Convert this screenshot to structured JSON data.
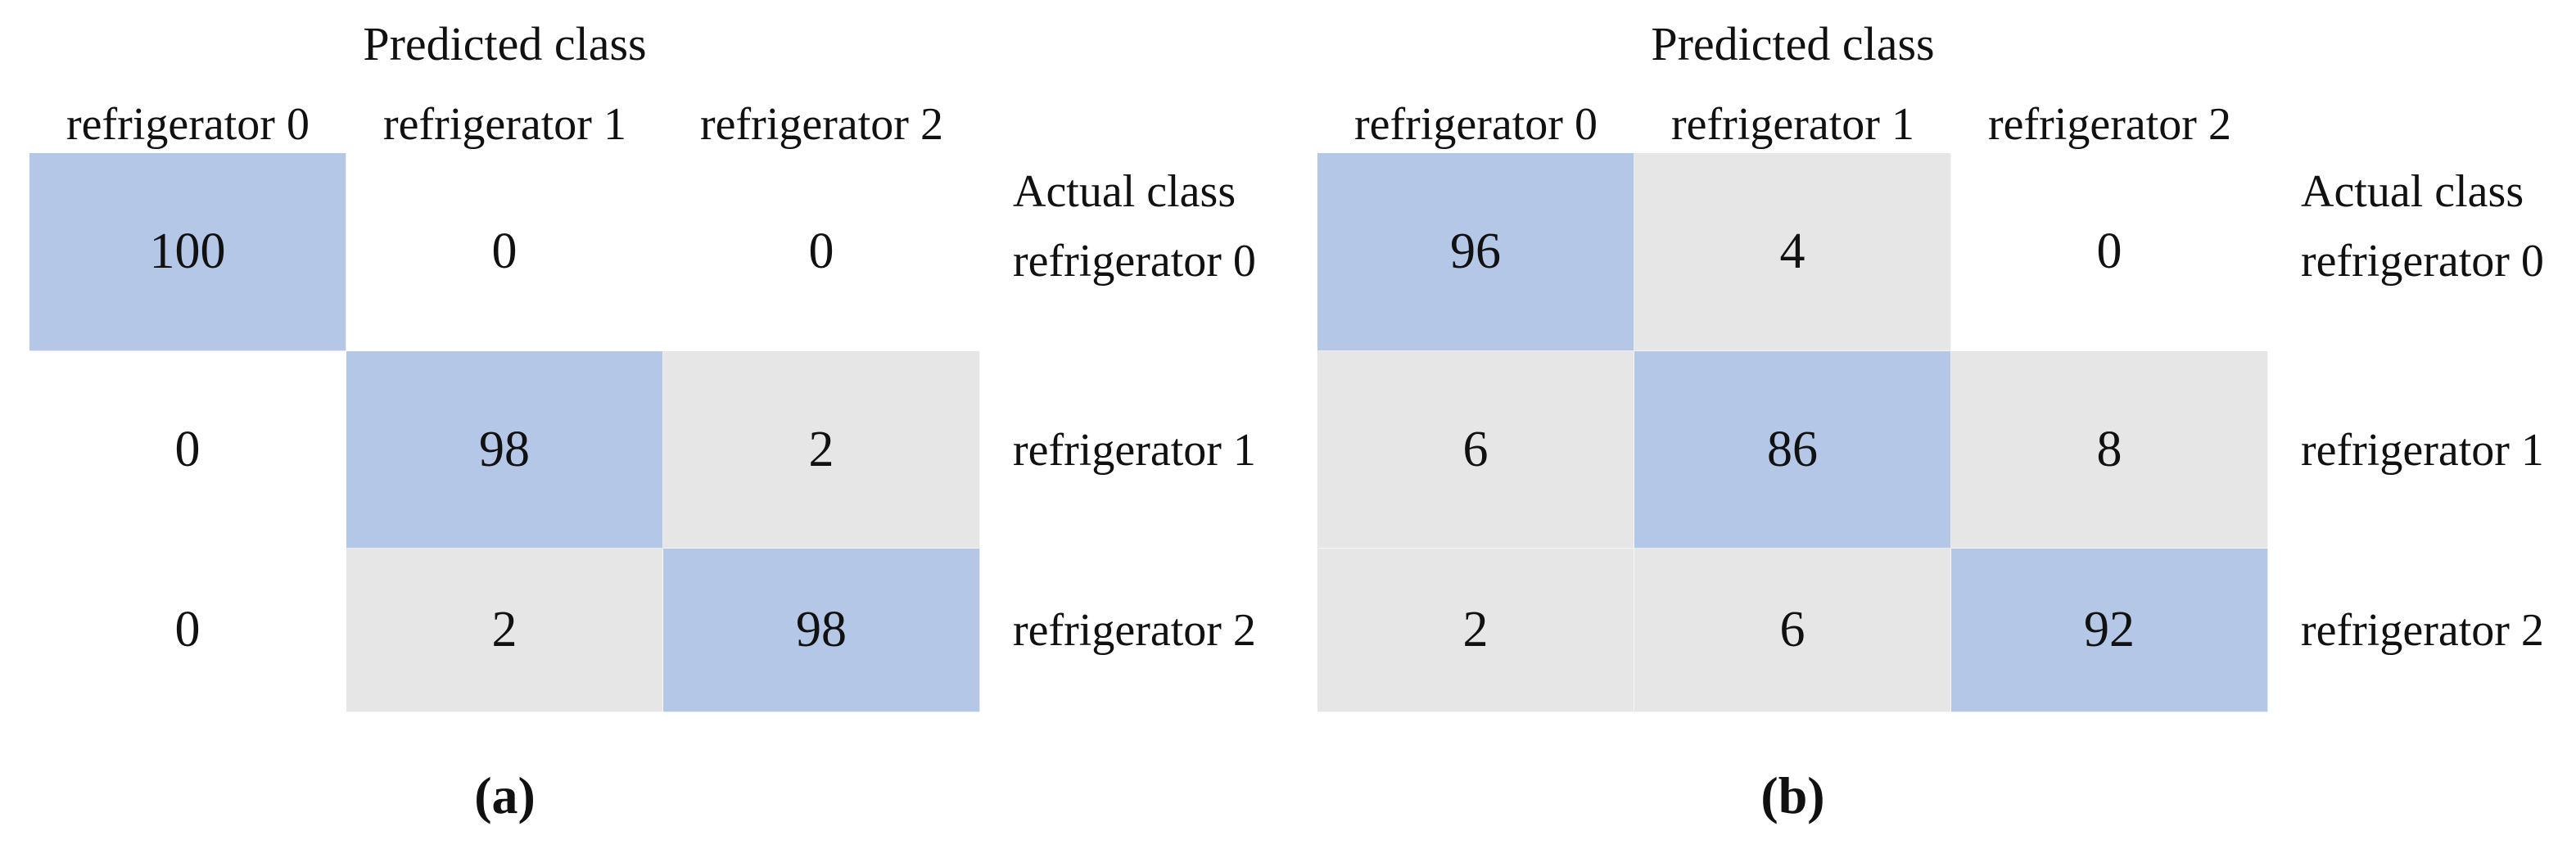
{
  "colors": {
    "fill_diagonal": "#b4c7e7",
    "fill_offdiagonal": "#e7e6e6",
    "fill_zero": "#ffffff",
    "text": "#111111",
    "background": "#ffffff"
  },
  "chart_data": [
    {
      "type": "heatmap",
      "caption": "(a)",
      "x_axis_title": "Predicted class",
      "y_axis_title": "Actual class",
      "x_labels": [
        "refrigerator 0",
        "refrigerator 1",
        "refrigerator 2"
      ],
      "y_labels": [
        "refrigerator 0",
        "refrigerator 1",
        "refrigerator 2"
      ],
      "values": [
        [
          100,
          0,
          0
        ],
        [
          0,
          98,
          2
        ],
        [
          0,
          2,
          98
        ]
      ],
      "rows": [
        {
          "cells": [
            {
              "v": "100",
              "tone": "blue"
            },
            {
              "v": "0",
              "tone": "white"
            },
            {
              "v": "0",
              "tone": "white"
            }
          ]
        },
        {
          "cells": [
            {
              "v": "0",
              "tone": "white"
            },
            {
              "v": "98",
              "tone": "blue"
            },
            {
              "v": "2",
              "tone": "gray"
            }
          ]
        },
        {
          "cells": [
            {
              "v": "0",
              "tone": "white"
            },
            {
              "v": "2",
              "tone": "gray"
            },
            {
              "v": "98",
              "tone": "blue"
            }
          ]
        }
      ]
    },
    {
      "type": "heatmap",
      "caption": "(b)",
      "x_axis_title": "Predicted class",
      "y_axis_title": "Actual class",
      "x_labels": [
        "refrigerator 0",
        "refrigerator 1",
        "refrigerator 2"
      ],
      "y_labels": [
        "refrigerator 0",
        "refrigerator 1",
        "refrigerator 2"
      ],
      "values": [
        [
          96,
          4,
          0
        ],
        [
          6,
          86,
          8
        ],
        [
          2,
          6,
          92
        ]
      ],
      "rows": [
        {
          "cells": [
            {
              "v": "96",
              "tone": "blue"
            },
            {
              "v": "4",
              "tone": "gray"
            },
            {
              "v": "0",
              "tone": "white"
            }
          ]
        },
        {
          "cells": [
            {
              "v": "6",
              "tone": "gray"
            },
            {
              "v": "86",
              "tone": "blue"
            },
            {
              "v": "8",
              "tone": "gray"
            }
          ]
        },
        {
          "cells": [
            {
              "v": "2",
              "tone": "gray"
            },
            {
              "v": "6",
              "tone": "gray"
            },
            {
              "v": "92",
              "tone": "blue"
            }
          ]
        }
      ]
    }
  ]
}
